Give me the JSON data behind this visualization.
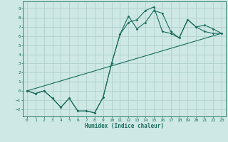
{
  "xlabel": "Humidex (Indice chaleur)",
  "bg_color": "#cde8e5",
  "line_color": "#1a6b5a",
  "grid_color": "#b0cfcc",
  "xlim": [
    -0.5,
    23.5
  ],
  "ylim": [
    -2.8,
    9.8
  ],
  "xticks": [
    0,
    1,
    2,
    3,
    4,
    5,
    6,
    7,
    8,
    9,
    10,
    11,
    12,
    13,
    14,
    15,
    16,
    17,
    18,
    19,
    20,
    21,
    22,
    23
  ],
  "yticks": [
    -2,
    -1,
    0,
    1,
    2,
    3,
    4,
    5,
    6,
    7,
    8,
    9
  ],
  "series1_x": [
    0,
    1,
    2,
    3,
    4,
    5,
    6,
    7,
    8,
    9,
    10,
    11,
    12,
    13,
    14,
    15,
    16,
    17,
    18,
    19,
    20,
    21,
    22,
    23
  ],
  "series1_y": [
    0,
    -0.3,
    0,
    -0.8,
    -1.8,
    -0.8,
    -2.2,
    -2.2,
    -2.4,
    -0.7,
    3.0,
    6.2,
    7.5,
    7.8,
    8.8,
    9.2,
    6.5,
    6.3,
    5.8,
    7.8,
    7.0,
    6.5,
    6.3,
    6.3
  ],
  "series2_x": [
    0,
    1,
    2,
    3,
    4,
    5,
    6,
    7,
    8,
    9,
    10,
    11,
    12,
    13,
    14,
    15,
    16,
    17,
    18,
    19,
    20,
    21,
    22,
    23
  ],
  "series2_y": [
    0,
    -0.3,
    0,
    -0.8,
    -1.8,
    -0.8,
    -2.2,
    -2.2,
    -2.4,
    -0.7,
    3.0,
    6.2,
    8.2,
    6.8,
    7.5,
    8.8,
    8.5,
    6.5,
    5.8,
    7.8,
    7.0,
    7.2,
    6.8,
    6.3
  ],
  "series3_x": [
    0,
    23
  ],
  "series3_y": [
    0,
    6.3
  ]
}
